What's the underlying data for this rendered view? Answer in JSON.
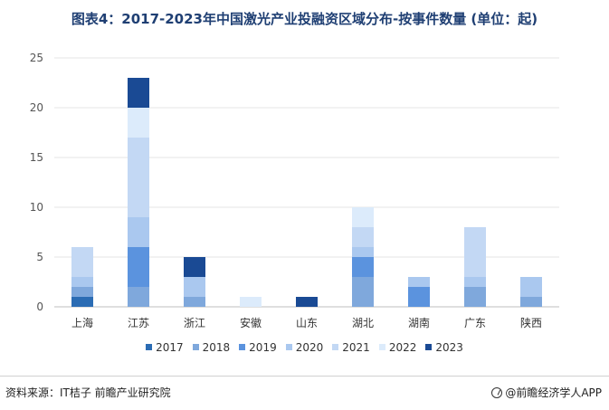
{
  "title": "图表4：2017-2023年中国激光产业投融资区域分布-按事件数量 (单位：起)",
  "source": "资料来源：IT桔子 前瞻产业研究院",
  "brand": "@前瞻经济学人APP",
  "chart_data": {
    "type": "bar",
    "stacked": true,
    "categories": [
      "上海",
      "江苏",
      "浙江",
      "安徽",
      "山东",
      "湖北",
      "湖南",
      "广东",
      "陕西"
    ],
    "ylim": [
      0,
      25
    ],
    "yticks": [
      0,
      5,
      10,
      15,
      20,
      25
    ],
    "grid": true,
    "legend_position": "bottom",
    "series": [
      {
        "name": "2017",
        "color": "#2b6cb4",
        "values": [
          1,
          0,
          0,
          0,
          0,
          0,
          0,
          0,
          0
        ]
      },
      {
        "name": "2018",
        "color": "#7fa8dc",
        "values": [
          1,
          2,
          1,
          0,
          0,
          3,
          0,
          2,
          1
        ]
      },
      {
        "name": "2019",
        "color": "#5b93de",
        "values": [
          0,
          4,
          0,
          0,
          0,
          2,
          2,
          0,
          0
        ]
      },
      {
        "name": "2020",
        "color": "#aac8ef",
        "values": [
          1,
          3,
          2,
          0,
          0,
          1,
          1,
          1,
          2
        ]
      },
      {
        "name": "2021",
        "color": "#c3d8f4",
        "values": [
          3,
          8,
          0,
          0,
          0,
          2,
          0,
          5,
          0
        ]
      },
      {
        "name": "2022",
        "color": "#dcebfb",
        "values": [
          0,
          3,
          0,
          1,
          0,
          2,
          0,
          0,
          0
        ]
      },
      {
        "name": "2023",
        "color": "#1a4a94",
        "values": [
          0,
          3,
          2,
          0,
          1,
          0,
          0,
          0,
          0
        ]
      }
    ]
  }
}
